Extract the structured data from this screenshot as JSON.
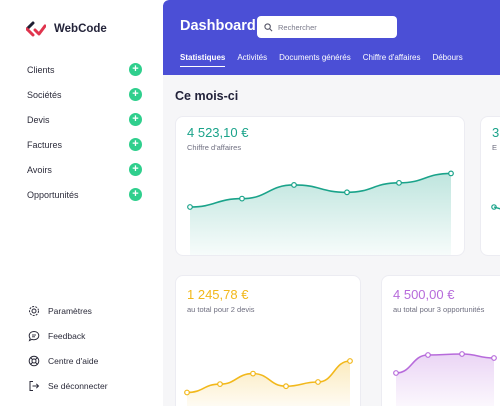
{
  "app": {
    "name": "WebCode"
  },
  "sidebar": {
    "items": [
      {
        "label": "Clients"
      },
      {
        "label": "Sociétés"
      },
      {
        "label": "Devis"
      },
      {
        "label": "Factures"
      },
      {
        "label": "Avoirs"
      },
      {
        "label": "Opportunités"
      }
    ],
    "bottom": [
      {
        "label": "Paramètres",
        "icon": "gear-icon"
      },
      {
        "label": "Feedback",
        "icon": "chat-icon"
      },
      {
        "label": "Centre d'aide",
        "icon": "help-icon"
      },
      {
        "label": "Se déconnecter",
        "icon": "logout-icon"
      }
    ]
  },
  "header": {
    "title": "Dashboard",
    "search_placeholder": "Rechercher",
    "tabs": [
      {
        "label": "Statistiques",
        "active": true
      },
      {
        "label": "Activités"
      },
      {
        "label": "Documents générés"
      },
      {
        "label": "Chiffre d'affaires"
      },
      {
        "label": "Débours"
      }
    ]
  },
  "main": {
    "section_title": "Ce mois-ci",
    "cards": [
      {
        "value": "4 523,10 €",
        "subtitle": "Chiffre d'affaires",
        "color": "#1aa38a",
        "points": [
          40,
          48,
          61,
          54,
          63,
          72
        ]
      },
      {
        "value": "3",
        "subtitle": "E",
        "color": "#1aa38a",
        "points": []
      },
      {
        "value": "1 245,78 €",
        "subtitle": "au total pour 2 devis",
        "color": "#f2b81b",
        "points": [
          10,
          18,
          28,
          16,
          20,
          40
        ]
      },
      {
        "value": "4 500,00 €",
        "subtitle": "au total pour 3 opportunités",
        "color": "#b76bdb",
        "points": [
          30,
          48,
          49,
          45
        ]
      }
    ]
  }
}
